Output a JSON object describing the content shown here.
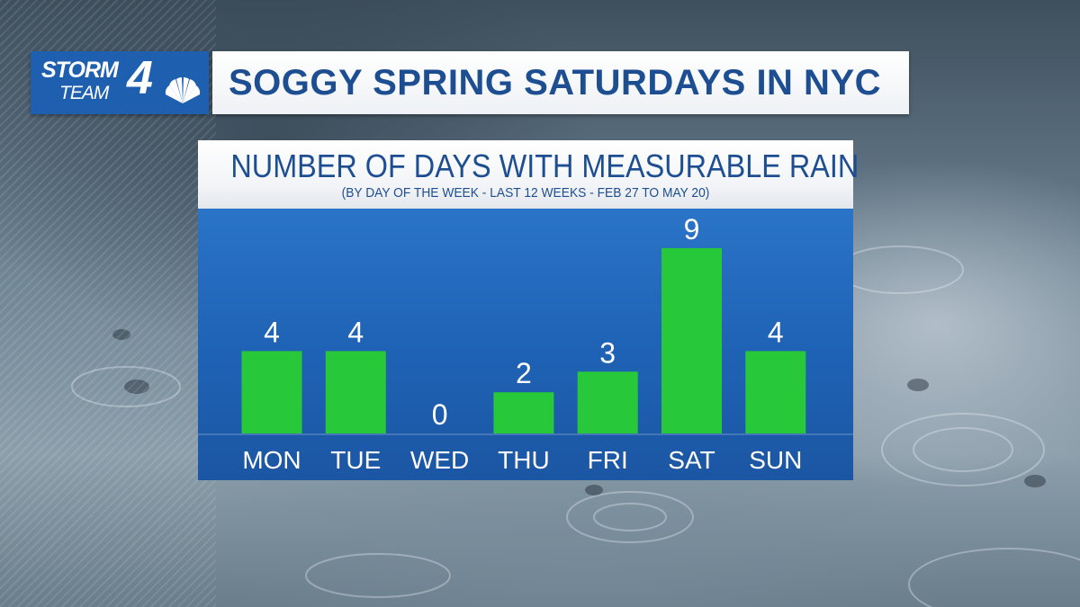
{
  "header": {
    "logo_line1": "STORM",
    "logo_line2": "TEAM",
    "logo_number": "4",
    "title": "SOGGY SPRING SATURDAYS IN NYC"
  },
  "colors": {
    "brand_blue": "#1f5fb0",
    "title_text": "#1e4e92",
    "bar_green": "#27c83a",
    "panel_blue": "#2268bd"
  },
  "icons": {
    "logo": "nbc-peacock-icon"
  },
  "chart_data": {
    "type": "bar",
    "title": "NUMBER OF DAYS WITH MEASURABLE RAIN",
    "subtitle": "(BY DAY OF THE WEEK - LAST 12 WEEKS - FEB 27 TO MAY 20)",
    "categories": [
      "MON",
      "TUE",
      "WED",
      "THU",
      "FRI",
      "SAT",
      "SUN"
    ],
    "values": [
      4,
      4,
      0,
      2,
      3,
      9,
      4
    ],
    "data_labels": [
      "4",
      "4",
      "0",
      "2",
      "3",
      "9",
      "4"
    ],
    "xlabel": "",
    "ylabel": "",
    "ylim": [
      0,
      10
    ],
    "grid": false,
    "legend": "none"
  }
}
